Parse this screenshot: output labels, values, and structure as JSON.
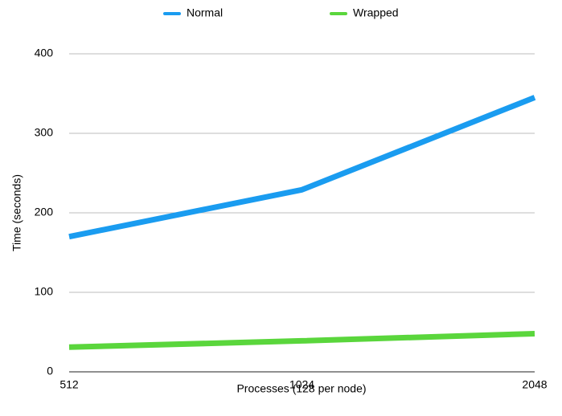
{
  "chart_data": {
    "type": "line",
    "x": [
      512,
      1024,
      2048
    ],
    "xlabel": "Processes (128 per node)",
    "ylabel": "Time (seconds)",
    "ylim": [
      0,
      400
    ],
    "yticks": [
      0,
      100,
      200,
      300,
      400
    ],
    "xtick_labels": [
      "512",
      "1024",
      "2048"
    ],
    "grid": "horizontal",
    "legend_position": "top",
    "series": [
      {
        "name": "Normal",
        "color": "#1a9cf0",
        "values": [
          170,
          229,
          345
        ]
      },
      {
        "name": "Wrapped",
        "color": "#5ad63c",
        "values": [
          31,
          39,
          48
        ]
      }
    ]
  }
}
